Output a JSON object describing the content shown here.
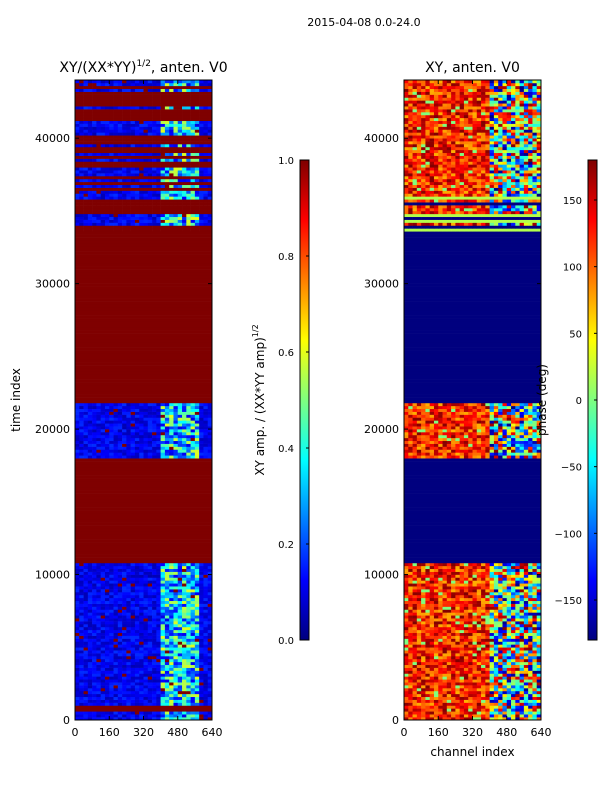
{
  "suptitle": "2015-04-08 0.0-24.0",
  "colors": {
    "jet": [
      "#00007f",
      "#0000ff",
      "#007fff",
      "#00ffff",
      "#7fff7f",
      "#ffff00",
      "#ff7f00",
      "#ff0000",
      "#7f0000"
    ]
  },
  "chart_data": [
    {
      "type": "heatmap",
      "id": "amp",
      "title_main": "XY/(XX*YY)",
      "title_sup": "1/2",
      "title_tail": ", anten. V0",
      "xlabel": "",
      "ylabel": "time index",
      "xlim": [
        0,
        640
      ],
      "ylim": [
        0,
        44000
      ],
      "xticks": [
        0,
        160,
        320,
        480,
        640
      ],
      "yticks": [
        0,
        10000,
        20000,
        30000,
        40000
      ],
      "colorbar": {
        "label_main": "XY amp. / (XX*YY amp)",
        "label_sup": "1/2",
        "range": [
          0.0,
          1.0
        ],
        "ticks": [
          0.0,
          0.2,
          0.4,
          0.6,
          0.8,
          1.0
        ],
        "tick_labels": [
          "0.0",
          "0.2",
          "0.4",
          "0.6",
          "0.8",
          "1.0"
        ]
      },
      "bands": [
        {
          "y0": 0,
          "y1": 700,
          "pattern": "mixed",
          "level": 0.12
        },
        {
          "y0": 700,
          "y1": 1000,
          "pattern": "uniform",
          "level": 1.0
        },
        {
          "y0": 1000,
          "y1": 2900,
          "pattern": "mixed",
          "level": 0.1
        },
        {
          "y0": 2900,
          "y1": 10900,
          "pattern": "mixed",
          "level": 0.12
        },
        {
          "y0": 10900,
          "y1": 18000,
          "pattern": "uniform",
          "level": 1.0
        },
        {
          "y0": 18000,
          "y1": 21900,
          "pattern": "mixed",
          "level": 0.15
        },
        {
          "y0": 21900,
          "y1": 33700,
          "pattern": "uniform",
          "level": 1.0
        },
        {
          "y0": 33700,
          "y1": 44000,
          "pattern": "stripes",
          "level": 0.1
        }
      ]
    },
    {
      "type": "heatmap",
      "id": "phase",
      "title_main": "XY, anten. V0",
      "title_sup": "",
      "title_tail": "",
      "xlabel": "channel index",
      "ylabel": "",
      "xlim": [
        0,
        640
      ],
      "ylim": [
        0,
        44000
      ],
      "xticks": [
        0,
        160,
        320,
        480,
        640
      ],
      "yticks": [
        0,
        10000,
        20000,
        30000,
        40000
      ],
      "colorbar": {
        "label_main": "phase (deg)",
        "label_sup": "",
        "range": [
          -180,
          180
        ],
        "ticks": [
          -150,
          -100,
          -50,
          0,
          50,
          100,
          150
        ],
        "tick_labels": [
          "−150",
          "−100",
          "−50",
          "0",
          "50",
          "100",
          "150"
        ]
      },
      "bands": [
        {
          "y0": 0,
          "y1": 10900,
          "pattern": "hot",
          "level": 0.8
        },
        {
          "y0": 10900,
          "y1": 18000,
          "pattern": "uniform",
          "level": 0.0
        },
        {
          "y0": 18000,
          "y1": 21900,
          "pattern": "hot",
          "level": 0.75
        },
        {
          "y0": 21900,
          "y1": 33700,
          "pattern": "uniform",
          "level": 0.0
        },
        {
          "y0": 33700,
          "y1": 36000,
          "pattern": "stripes",
          "level": 0.5
        },
        {
          "y0": 36000,
          "y1": 44000,
          "pattern": "hot",
          "level": 0.7
        }
      ]
    }
  ]
}
